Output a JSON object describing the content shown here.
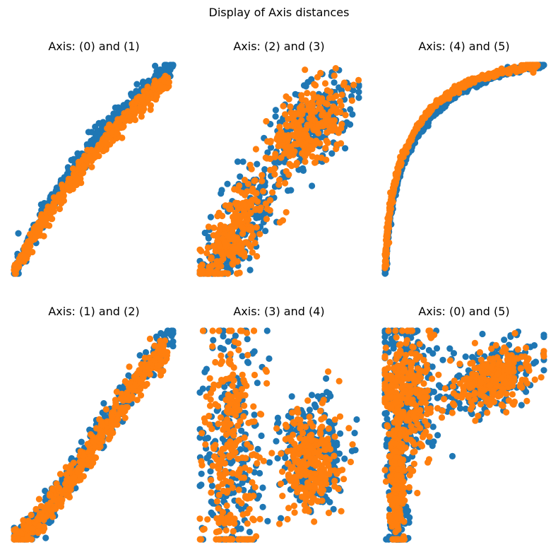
{
  "figure": {
    "title": "Display of Axis distances"
  },
  "colors": {
    "series_a": "#1f77b4",
    "series_b": "#ff7f0e",
    "background": "#ffffff"
  },
  "chart_data": [
    {
      "type": "scatter",
      "title": "Axis: (0) and (1)",
      "shape": "curve",
      "xlim": [
        0,
        1
      ],
      "ylim": [
        0,
        1
      ],
      "grid": false,
      "axes_visible": false,
      "series": [
        {
          "color": "#1f77b4",
          "x": [
            0.0,
            0.1,
            0.2,
            0.3,
            0.4,
            0.5,
            0.6,
            0.7,
            0.8,
            0.9,
            1.0
          ],
          "y": [
            0.0,
            0.16,
            0.3,
            0.42,
            0.52,
            0.62,
            0.71,
            0.78,
            0.86,
            0.93,
            1.0
          ],
          "spread": 0.025
        },
        {
          "color": "#ff7f0e",
          "x": [
            0.0,
            0.1,
            0.2,
            0.3,
            0.4,
            0.5,
            0.6,
            0.7,
            0.8,
            0.9,
            0.96
          ],
          "y": [
            0.0,
            0.14,
            0.27,
            0.38,
            0.48,
            0.57,
            0.66,
            0.74,
            0.81,
            0.88,
            0.93
          ],
          "spread": 0.02
        }
      ]
    },
    {
      "type": "scatter",
      "title": "Axis: (2) and (3)",
      "shape": "clusters",
      "xlim": [
        0,
        1
      ],
      "ylim": [
        0,
        1
      ],
      "grid": false,
      "axes_visible": false,
      "series": [
        {
          "color": "#1f77b4",
          "clusters": [
            {
              "cx": 0.25,
              "cy": 0.22,
              "sx": 0.12,
              "sy": 0.12,
              "tilt": 0.6
            },
            {
              "cx": 0.7,
              "cy": 0.72,
              "sx": 0.13,
              "sy": 0.1,
              "tilt": 0.4
            }
          ]
        },
        {
          "color": "#ff7f0e",
          "clusters": [
            {
              "cx": 0.24,
              "cy": 0.21,
              "sx": 0.11,
              "sy": 0.11,
              "tilt": 0.6
            },
            {
              "cx": 0.68,
              "cy": 0.7,
              "sx": 0.12,
              "sy": 0.09,
              "tilt": 0.4
            }
          ]
        }
      ]
    },
    {
      "type": "scatter",
      "title": "Axis: (4) and (5)",
      "shape": "curve",
      "xlim": [
        0,
        1
      ],
      "ylim": [
        0,
        1
      ],
      "grid": false,
      "axes_visible": false,
      "series": [
        {
          "color": "#1f77b4",
          "x": [
            0.0,
            0.02,
            0.05,
            0.1,
            0.2,
            0.3,
            0.45,
            0.6,
            0.75,
            0.9,
            1.0
          ],
          "y": [
            0.0,
            0.2,
            0.35,
            0.5,
            0.66,
            0.76,
            0.86,
            0.92,
            0.96,
            0.99,
            1.0
          ],
          "spread": 0.008
        },
        {
          "color": "#ff7f0e",
          "x": [
            0.0,
            0.02,
            0.05,
            0.1,
            0.2,
            0.3,
            0.45,
            0.6,
            0.75,
            0.9,
            0.96
          ],
          "y": [
            0.03,
            0.24,
            0.4,
            0.55,
            0.7,
            0.8,
            0.89,
            0.94,
            0.97,
            0.99,
            1.0
          ],
          "spread": 0.008
        }
      ]
    },
    {
      "type": "scatter",
      "title": "Axis: (1) and (2)",
      "shape": "curve",
      "xlim": [
        0,
        1
      ],
      "ylim": [
        0,
        1
      ],
      "grid": false,
      "axes_visible": false,
      "series": [
        {
          "color": "#1f77b4",
          "x": [
            0.0,
            0.1,
            0.2,
            0.3,
            0.4,
            0.5,
            0.6,
            0.7,
            0.8,
            0.9,
            1.0
          ],
          "y": [
            0.0,
            0.05,
            0.14,
            0.24,
            0.36,
            0.47,
            0.58,
            0.69,
            0.8,
            0.9,
            1.0
          ],
          "spread": 0.035
        },
        {
          "color": "#ff7f0e",
          "x": [
            0.0,
            0.1,
            0.2,
            0.3,
            0.4,
            0.5,
            0.6,
            0.7,
            0.8,
            0.9,
            0.95
          ],
          "y": [
            0.0,
            0.05,
            0.13,
            0.23,
            0.34,
            0.45,
            0.56,
            0.67,
            0.77,
            0.87,
            0.92
          ],
          "spread": 0.035
        }
      ]
    },
    {
      "type": "scatter",
      "title": "Axis: (3) and (4)",
      "shape": "clusters",
      "xlim": [
        0,
        1
      ],
      "ylim": [
        0,
        1
      ],
      "grid": false,
      "axes_visible": false,
      "series": [
        {
          "color": "#1f77b4",
          "clusters": [
            {
              "cx": 0.2,
              "cy": 0.45,
              "sx": 0.1,
              "sy": 0.3,
              "tilt": 0.0
            },
            {
              "cx": 0.72,
              "cy": 0.4,
              "sx": 0.1,
              "sy": 0.14,
              "tilt": 0.0
            }
          ]
        },
        {
          "color": "#ff7f0e",
          "clusters": [
            {
              "cx": 0.19,
              "cy": 0.43,
              "sx": 0.09,
              "sy": 0.3,
              "tilt": 0.0
            },
            {
              "cx": 0.7,
              "cy": 0.38,
              "sx": 0.09,
              "sy": 0.13,
              "tilt": 0.0
            }
          ]
        }
      ]
    },
    {
      "type": "scatter",
      "title": "Axis: (0) and (5)",
      "shape": "clusters",
      "xlim": [
        0,
        1
      ],
      "ylim": [
        0,
        1
      ],
      "grid": false,
      "axes_visible": false,
      "series": [
        {
          "color": "#1f77b4",
          "clusters": [
            {
              "cx": 0.15,
              "cy": 0.72,
              "sx": 0.09,
              "sy": 0.17,
              "tilt": 0.0
            },
            {
              "cx": 0.08,
              "cy": 0.25,
              "sx": 0.03,
              "sy": 0.2,
              "tilt": 0.0
            },
            {
              "cx": 0.68,
              "cy": 0.78,
              "sx": 0.14,
              "sy": 0.08,
              "tilt": 0.2
            }
          ]
        },
        {
          "color": "#ff7f0e",
          "clusters": [
            {
              "cx": 0.14,
              "cy": 0.72,
              "sx": 0.08,
              "sy": 0.16,
              "tilt": 0.0
            },
            {
              "cx": 0.08,
              "cy": 0.3,
              "sx": 0.025,
              "sy": 0.17,
              "tilt": 0.0
            },
            {
              "cx": 0.66,
              "cy": 0.77,
              "sx": 0.13,
              "sy": 0.07,
              "tilt": 0.2
            }
          ]
        }
      ]
    }
  ]
}
